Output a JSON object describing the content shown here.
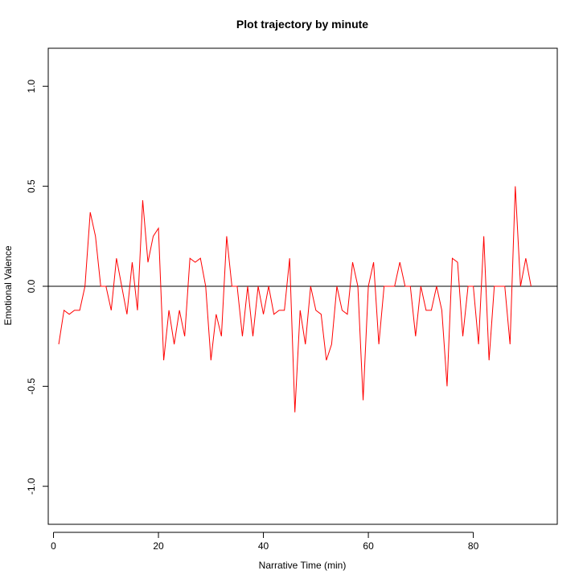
{
  "chart_data": {
    "type": "line",
    "title": "Plot trajectory by minute",
    "xlabel": "Narrative Time (min)",
    "ylabel": "Emotional Valence",
    "xlim": [
      -1,
      96
    ],
    "ylim": [
      -1.19,
      1.19
    ],
    "x_ticks": [
      0,
      20,
      40,
      60,
      80
    ],
    "x_tick_labels": [
      "0",
      "20",
      "40",
      "60",
      "80"
    ],
    "y_ticks": [
      -1.0,
      -0.5,
      0.0,
      0.5,
      1.0
    ],
    "y_tick_labels": [
      "-1.0",
      "-0.5",
      "0.0",
      "0.5",
      "1.0"
    ],
    "grid": false,
    "reference_line": {
      "y": 0,
      "color": "#000000"
    },
    "series": [
      {
        "color": "#ff0000",
        "x": [
          1,
          2,
          3,
          4,
          5,
          6,
          7,
          8,
          9,
          10,
          11,
          12,
          13,
          14,
          15,
          16,
          17,
          18,
          19,
          20,
          21,
          22,
          23,
          24,
          25,
          26,
          27,
          28,
          29,
          30,
          31,
          32,
          33,
          34,
          35,
          36,
          37,
          38,
          39,
          40,
          41,
          42,
          43,
          44,
          45,
          46,
          47,
          48,
          49,
          50,
          51,
          52,
          53,
          54,
          55,
          56,
          57,
          58,
          59,
          60,
          61,
          62,
          63,
          64,
          65,
          66,
          67,
          68,
          69,
          70,
          71,
          72,
          73,
          74,
          75,
          76,
          77,
          78,
          79,
          80,
          81,
          82,
          83,
          84,
          85,
          86,
          87,
          88,
          89,
          90,
          91
        ],
        "y": [
          -0.29,
          -0.12,
          -0.14,
          -0.12,
          -0.12,
          0.0,
          0.37,
          0.25,
          0.0,
          0.0,
          -0.12,
          0.14,
          0.0,
          -0.14,
          0.12,
          -0.12,
          0.43,
          0.12,
          0.25,
          0.29,
          -0.37,
          -0.12,
          -0.29,
          -0.12,
          -0.25,
          0.14,
          0.12,
          0.14,
          0.0,
          -0.37,
          -0.14,
          -0.25,
          0.25,
          0.0,
          0.0,
          -0.25,
          0.0,
          -0.25,
          0.0,
          -0.14,
          0.0,
          -0.14,
          -0.12,
          -0.12,
          0.14,
          -0.63,
          -0.12,
          -0.29,
          0.0,
          -0.12,
          -0.14,
          -0.37,
          -0.29,
          0.0,
          -0.12,
          -0.14,
          0.12,
          0.0,
          -0.57,
          0.0,
          0.12,
          -0.29,
          0.0,
          0.0,
          0.0,
          0.12,
          0.0,
          0.0,
          -0.25,
          0.0,
          -0.12,
          -0.12,
          0.0,
          -0.12,
          -0.5,
          0.14,
          0.12,
          -0.25,
          0.0,
          0.0,
          -0.29,
          0.25,
          -0.37,
          0.0,
          0.0,
          0.0,
          -0.29,
          0.5,
          0.0,
          0.14,
          0.0
        ]
      }
    ]
  }
}
